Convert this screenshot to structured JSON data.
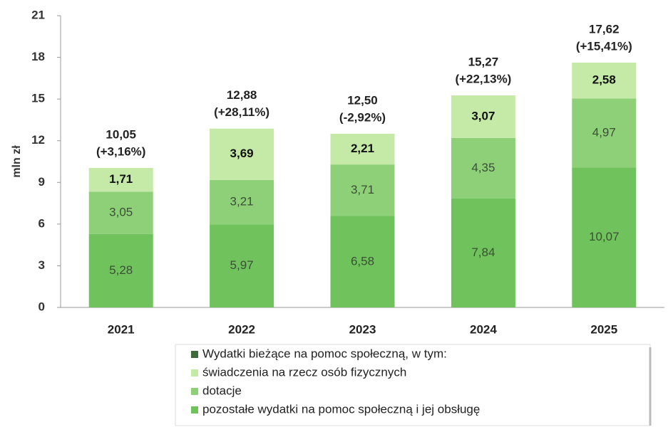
{
  "chart_data": {
    "type": "bar",
    "stacked": true,
    "y_label": "mln zł",
    "categories": [
      "2021",
      "2022",
      "2023",
      "2024",
      "2025"
    ],
    "ylim": [
      0,
      21
    ],
    "yticks": [
      0,
      3,
      6,
      9,
      12,
      15,
      18,
      21
    ],
    "total": {
      "name": "Wydatki bieżące na pomoc społeczną, w tym:",
      "color": "#3f6b3c",
      "values": [
        10.05,
        12.88,
        12.5,
        15.27,
        17.62
      ],
      "value_labels": [
        "10,05",
        "12,88",
        "12,50",
        "15,27",
        "17,62"
      ]
    },
    "change": {
      "values": [
        3.16,
        28.11,
        -2.92,
        22.13,
        15.41
      ],
      "value_labels": [
        "(+3,16%)",
        "(+28,11%)",
        "(-2,92%)",
        "(+22,13%)",
        "(+15,41%)"
      ]
    },
    "series": [
      {
        "name": "świadczenia na rzecz osób fizycznych",
        "color": "#c5e9a6",
        "values": [
          1.71,
          3.69,
          2.21,
          3.07,
          2.58
        ],
        "value_labels": [
          "1,71",
          "3,69",
          "2,21",
          "3,07",
          "2,58"
        ]
      },
      {
        "name": "dotacje",
        "color": "#8dd077",
        "values": [
          3.05,
          3.21,
          3.71,
          4.35,
          4.97
        ],
        "value_labels": [
          "3,05",
          "3,21",
          "3,71",
          "4,35",
          "4,97"
        ]
      },
      {
        "name": "pozostałe wydatki na pomoc społeczną i jej obsługę",
        "color": "#70c25d",
        "values": [
          5.28,
          5.97,
          6.58,
          7.84,
          10.07
        ],
        "value_labels": [
          "5,28",
          "5,97",
          "6,58",
          "7,84",
          "10,07"
        ]
      }
    ]
  }
}
